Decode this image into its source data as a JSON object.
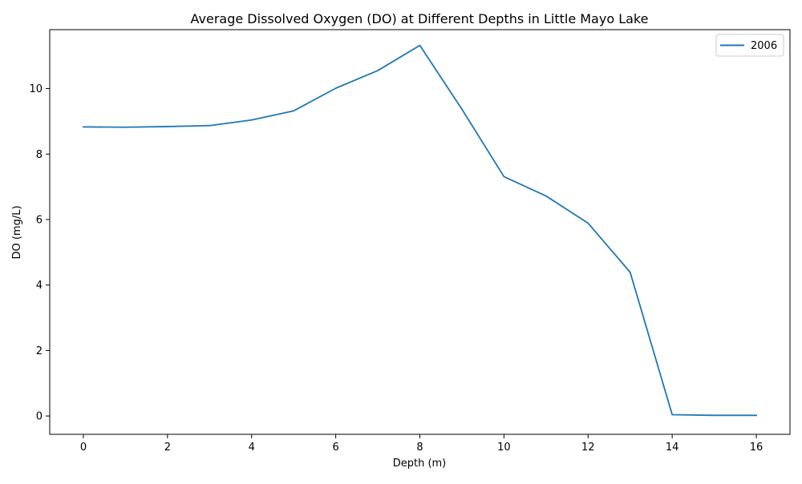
{
  "chart_data": {
    "type": "line",
    "title": "Average Dissolved Oxygen (DO) at Different Depths in Little Mayo Lake",
    "xlabel": "Depth (m)",
    "ylabel": "DO (mg/L)",
    "xlim": [
      -0.8,
      16.8
    ],
    "ylim": [
      -0.56,
      11.8
    ],
    "xticks": [
      0,
      2,
      4,
      6,
      8,
      10,
      12,
      14,
      16
    ],
    "yticks": [
      0,
      2,
      4,
      6,
      8,
      10
    ],
    "grid": false,
    "legend": {
      "position": "top-right"
    },
    "series": [
      {
        "name": "2006",
        "color": "#1f77b4",
        "x": [
          0,
          1,
          2,
          3,
          4,
          5,
          6,
          7,
          8,
          9,
          10,
          11,
          12,
          13,
          14,
          15,
          16
        ],
        "y": [
          8.83,
          8.82,
          8.84,
          8.87,
          9.04,
          9.32,
          10.01,
          10.55,
          11.32,
          9.37,
          7.31,
          6.72,
          5.89,
          4.39,
          0.04,
          0.02,
          0.02
        ]
      }
    ]
  }
}
